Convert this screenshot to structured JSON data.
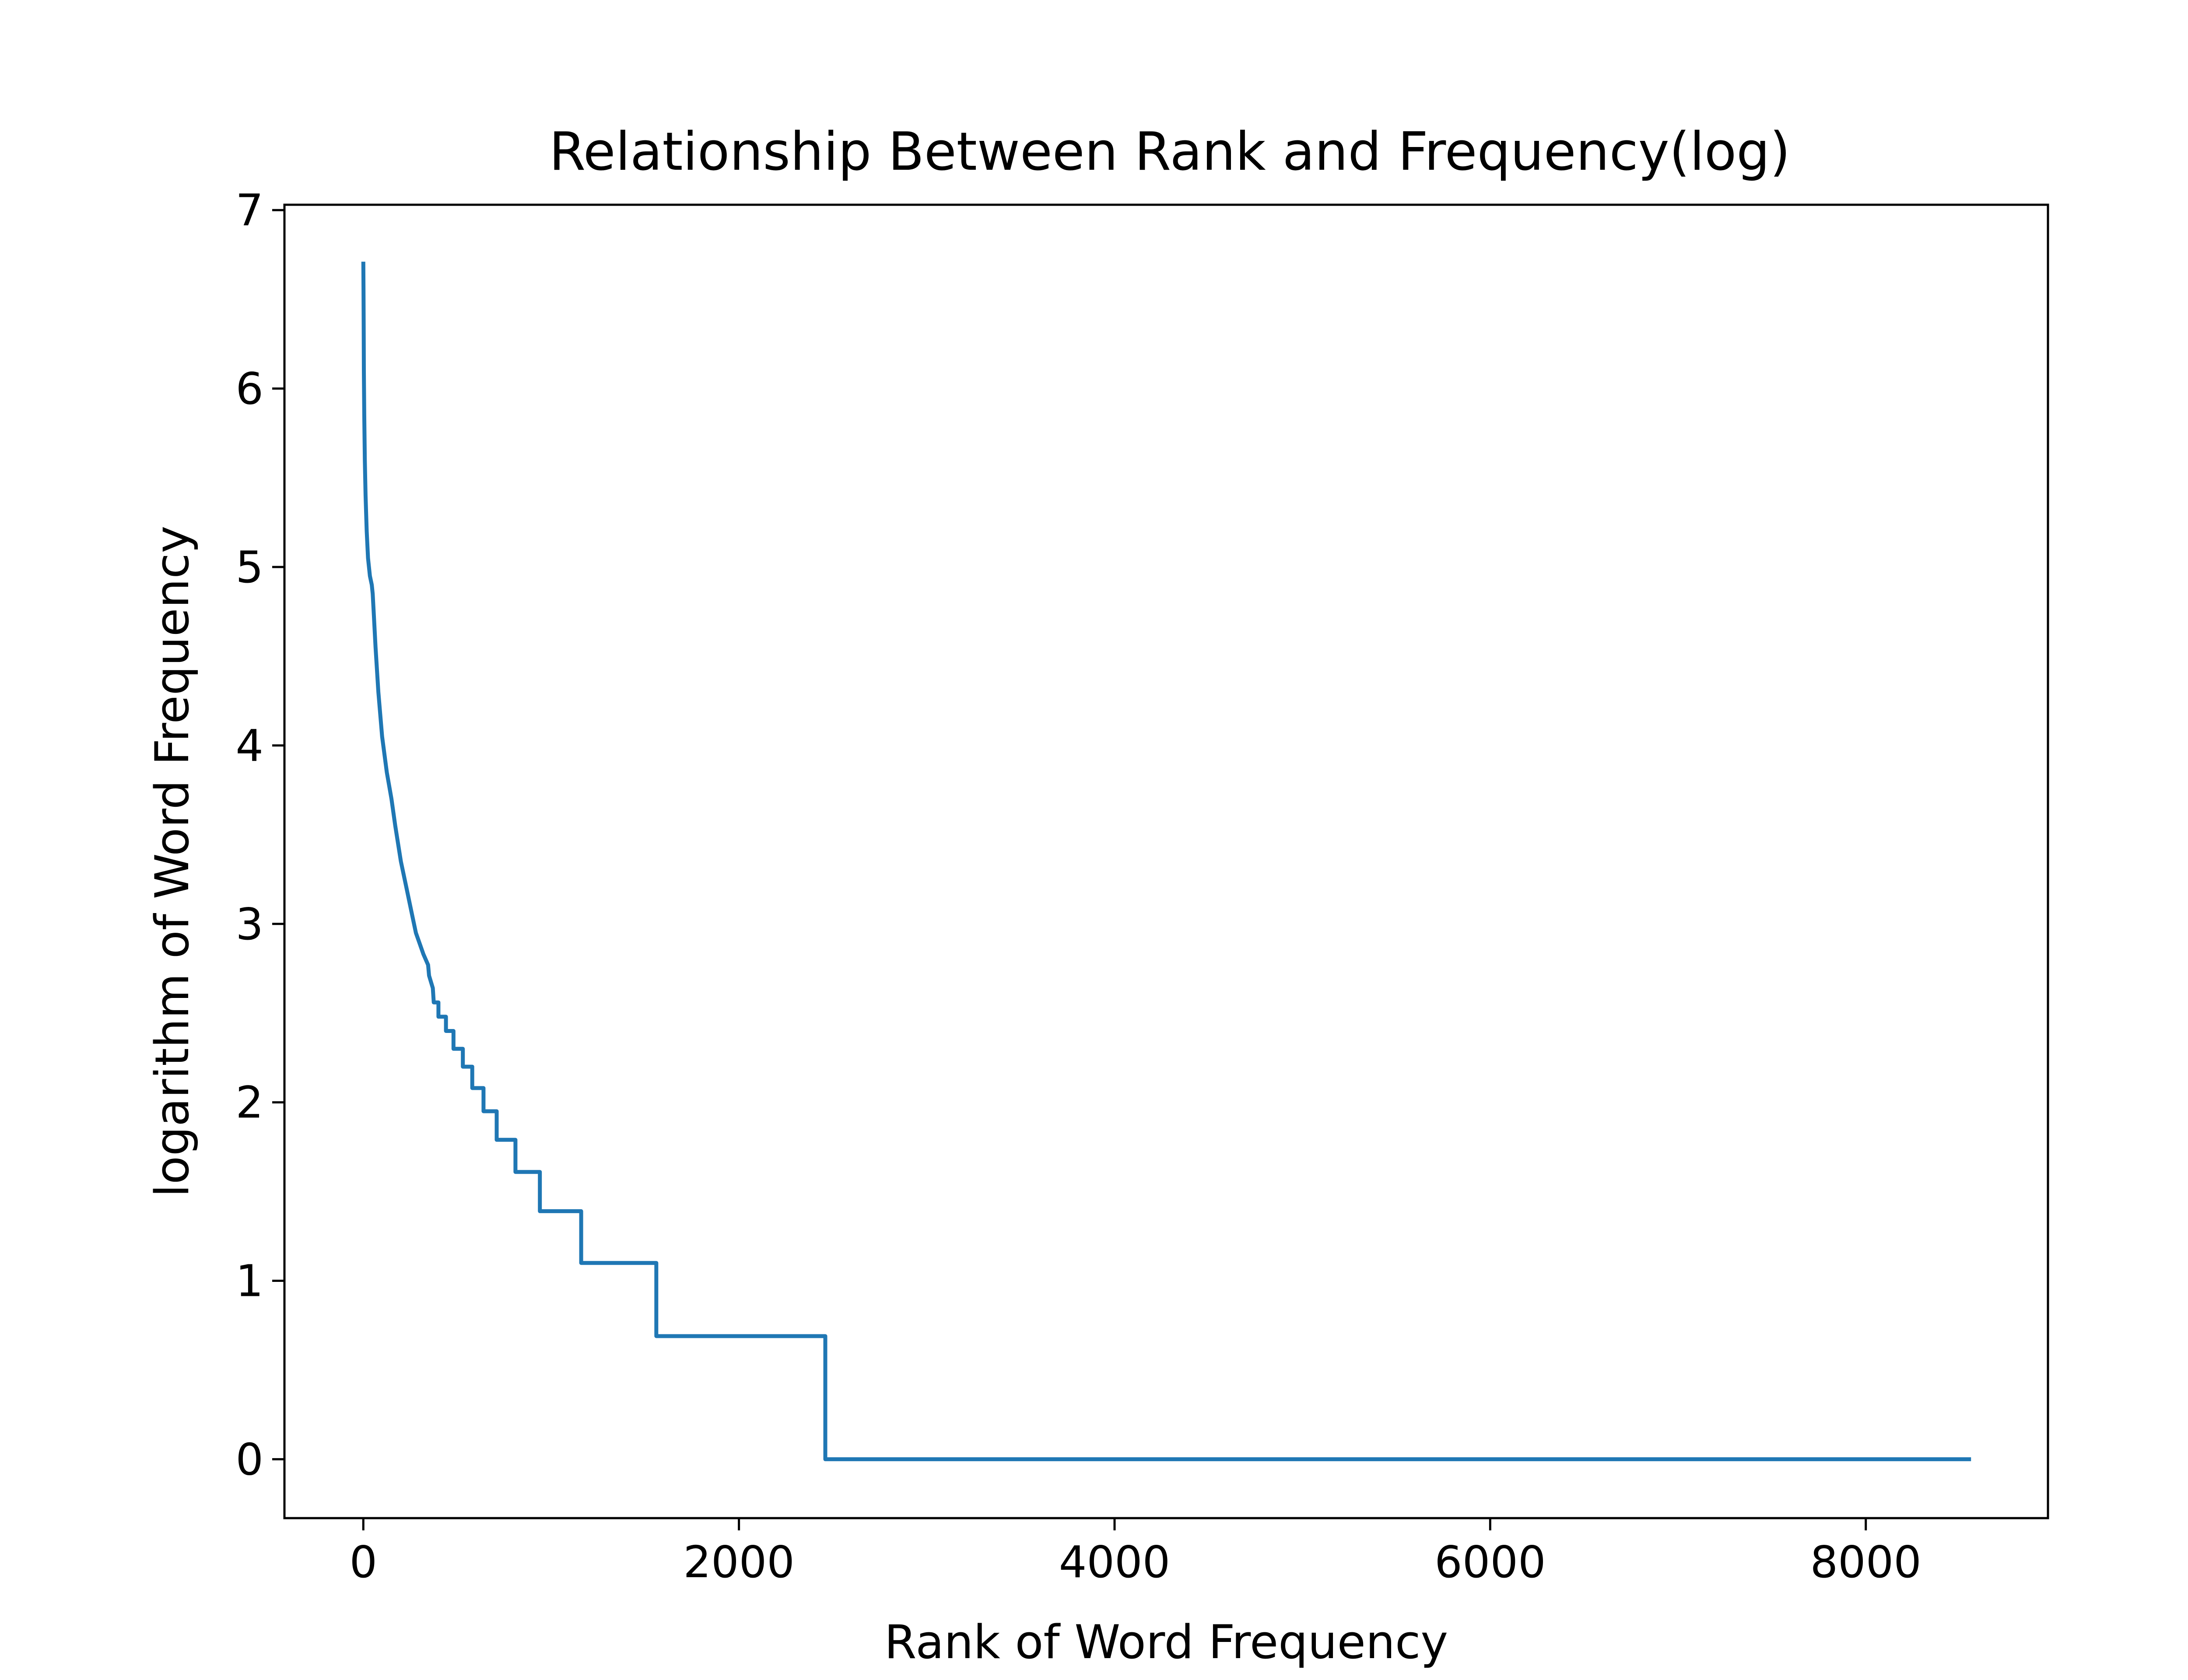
{
  "chart_data": {
    "type": "line",
    "title": "Relationship Between Rank and Frequency(log)",
    "xlabel": "Rank of Word Frequency",
    "ylabel": "logarithm of Word Frequency",
    "xlim": [
      -420,
      8970
    ],
    "ylim": [
      -0.33,
      7.03
    ],
    "xticks": [
      0,
      2000,
      4000,
      6000,
      8000
    ],
    "xtick_labels": [
      "0",
      "2000",
      "4000",
      "6000",
      "8000"
    ],
    "yticks": [
      0,
      1,
      2,
      3,
      4,
      5,
      6,
      7
    ],
    "ytick_labels": [
      "0",
      "1",
      "2",
      "3",
      "4",
      "5",
      "6",
      "7"
    ],
    "grid": false,
    "line_color": "#1f77b4",
    "series": [
      {
        "x": [
          0,
          1,
          2,
          3,
          5,
          8,
          12,
          18,
          25,
          35,
          45,
          50,
          55,
          65,
          80,
          100,
          125,
          150,
          170,
          200,
          230,
          260,
          280,
          300,
          320,
          345,
          350,
          370,
          375,
          400,
          400,
          440,
          440,
          480,
          480,
          530,
          530,
          580,
          580,
          640,
          640,
          710,
          710,
          810,
          810,
          940,
          940,
          1160,
          1160,
          1560,
          1560,
          2460,
          2460,
          8550
        ],
        "y": [
          6.7,
          6.55,
          6.35,
          6.1,
          5.85,
          5.6,
          5.4,
          5.2,
          5.05,
          4.95,
          4.9,
          4.85,
          4.75,
          4.55,
          4.3,
          4.05,
          3.85,
          3.7,
          3.55,
          3.35,
          3.2,
          3.05,
          2.95,
          2.89,
          2.83,
          2.77,
          2.71,
          2.64,
          2.56,
          2.56,
          2.48,
          2.48,
          2.4,
          2.4,
          2.3,
          2.3,
          2.2,
          2.2,
          2.08,
          2.08,
          1.95,
          1.95,
          1.79,
          1.79,
          1.61,
          1.61,
          1.39,
          1.39,
          1.1,
          1.1,
          0.69,
          0.69,
          0,
          0
        ]
      }
    ]
  }
}
